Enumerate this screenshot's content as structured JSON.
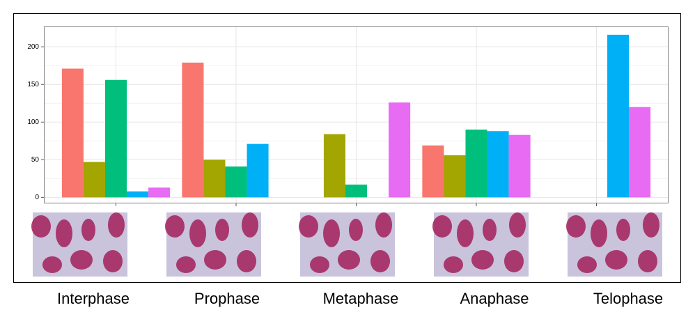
{
  "chart_data": {
    "type": "bar",
    "categories": [
      "Interphase",
      "Prophase",
      "Metaphase",
      "Anaphase",
      "Telophase"
    ],
    "series": [
      {
        "color": "#F8766D",
        "values": [
          171,
          179,
          null,
          69,
          null
        ]
      },
      {
        "color": "#A3A500",
        "values": [
          47,
          50,
          84,
          56,
          null
        ]
      },
      {
        "color": "#00BF7D",
        "values": [
          156,
          41,
          17,
          90,
          null
        ]
      },
      {
        "color": "#00B0F6",
        "values": [
          8,
          71,
          null,
          88,
          216
        ]
      },
      {
        "color": "#E76BF3",
        "values": [
          13,
          null,
          126,
          83,
          120
        ]
      }
    ],
    "ylim": [
      -8,
      227
    ],
    "yticks": [
      0,
      50,
      100,
      150,
      200
    ],
    "grid": true
  }
}
